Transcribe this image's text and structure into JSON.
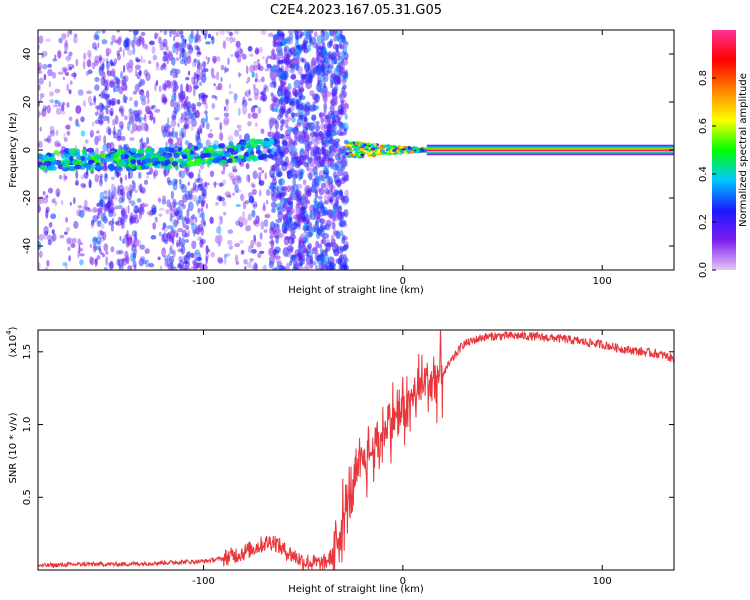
{
  "figure": {
    "title": "C2E4.2023.167.05.31.G05"
  },
  "chart_data": [
    {
      "type": "heatmap",
      "title": "C2E4.2023.167.05.31.G05",
      "xlabel": "Height of straight line (km)",
      "ylabel": "Frequency (Hz)",
      "xlim": [
        -183,
        136
      ],
      "ylim": [
        -50,
        50
      ],
      "x_ticks": [
        -100,
        0,
        100
      ],
      "x_tick_labels": [
        "-100",
        "0",
        "100"
      ],
      "y_ticks": [
        -40,
        -20,
        0,
        20,
        40
      ],
      "y_tick_labels": [
        "-40",
        "-20",
        "0",
        "20",
        "40"
      ],
      "colorbar": {
        "label": "Normalized spectral amplitude",
        "range": [
          0,
          1
        ],
        "ticks": [
          0.0,
          0.2,
          0.4,
          0.6,
          0.8
        ],
        "tick_labels": [
          "0.0",
          "0.2",
          "0.4",
          "0.6",
          "0.8"
        ],
        "colors": [
          "#e6c8f5",
          "#7a1cf0",
          "#1a1aff",
          "#00c8ff",
          "#00ff00",
          "#ffff00",
          "#ff8000",
          "#ff0000",
          "#ff3296"
        ]
      },
      "regions": [
        {
          "x_range": [
            -183,
            -66
          ],
          "description": "sparse scattered noise with weak carrier near 0 Hz",
          "level": 0.3
        },
        {
          "x_range": [
            -66,
            -28
          ],
          "description": "dense broadband noise",
          "level": 0.25
        },
        {
          "x_range": [
            -28,
            12
          ],
          "description": "narrowing carrier near 0 Hz",
          "level": 0.6
        },
        {
          "x_range": [
            12,
            136
          ],
          "description": "clean carrier at 0 Hz",
          "level": 0.95
        }
      ]
    },
    {
      "type": "line",
      "xlabel": "Height of straight line (km)",
      "ylabel": "SNR (10 * v/v)",
      "y_multiplier_label": "(x10",
      "y_multiplier_exp": "4",
      "xlim": [
        -183,
        136
      ],
      "ylim": [
        0,
        1.65
      ],
      "x_ticks": [
        -100,
        0,
        100
      ],
      "x_tick_labels": [
        "-100",
        "0",
        "100"
      ],
      "y_ticks": [
        0.5,
        1.0,
        1.5
      ],
      "y_tick_labels": [
        "0.5",
        "1.0",
        "1.5"
      ],
      "color": "#e8363a",
      "series": [
        {
          "x": [
            -183,
            -160,
            -140,
            -120,
            -100,
            -90,
            -80,
            -70,
            -65,
            -60,
            -55,
            -50,
            -40,
            -35,
            -30,
            -25,
            -20,
            -15,
            -10,
            -5,
            0,
            5,
            10,
            20,
            25,
            30,
            40,
            50,
            60,
            70,
            80,
            90,
            100,
            110,
            120,
            130,
            136
          ],
          "y": [
            0.03,
            0.04,
            0.04,
            0.05,
            0.06,
            0.08,
            0.12,
            0.18,
            0.2,
            0.14,
            0.1,
            0.06,
            0.04,
            0.1,
            0.35,
            0.55,
            0.75,
            0.82,
            0.95,
            1.05,
            1.1,
            1.18,
            1.28,
            1.35,
            1.45,
            1.55,
            1.6,
            1.61,
            1.61,
            1.6,
            1.59,
            1.57,
            1.55,
            1.52,
            1.5,
            1.48,
            1.45
          ]
        }
      ]
    }
  ]
}
